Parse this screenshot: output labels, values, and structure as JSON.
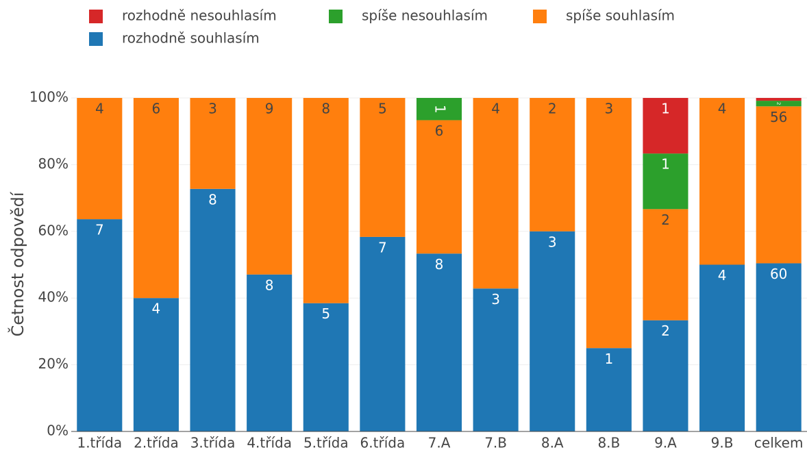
{
  "chart_data": {
    "type": "bar",
    "stack": "percent",
    "y_axis_label": "Četnost odpovědí",
    "categories": [
      "1.třída",
      "2.třída",
      "3.třída",
      "4.třída",
      "5.třída",
      "6.třída",
      "7.A",
      "7.B",
      "8.A",
      "8.B",
      "9.A",
      "9.B",
      "celkem"
    ],
    "series": [
      {
        "name": "rozhodně nesouhlasím",
        "color": "#d62728",
        "values": [
          null,
          null,
          null,
          null,
          null,
          null,
          null,
          null,
          null,
          null,
          1,
          null,
          1
        ]
      },
      {
        "name": "spíše nesouhlasím",
        "color": "#2ca02c",
        "values": [
          null,
          null,
          null,
          null,
          null,
          null,
          1,
          null,
          null,
          null,
          1,
          null,
          2
        ]
      },
      {
        "name": "spíše souhlasím",
        "color": "#ff7f0e",
        "values": [
          4,
          6,
          3,
          9,
          8,
          5,
          6,
          4,
          2,
          3,
          2,
          4,
          56
        ]
      },
      {
        "name": "rozhodně souhlasím",
        "color": "#1f77b4",
        "values": [
          7,
          4,
          8,
          8,
          5,
          7,
          8,
          3,
          3,
          1,
          2,
          4,
          60
        ]
      }
    ],
    "ylim": [
      0,
      100
    ],
    "yticks": [
      {
        "value": 0,
        "label": "0%"
      },
      {
        "value": 20,
        "label": "20%"
      },
      {
        "value": 40,
        "label": "40%"
      },
      {
        "value": 60,
        "label": "60%"
      },
      {
        "value": 80,
        "label": "80%"
      },
      {
        "value": 100,
        "label": "100%"
      }
    ],
    "grid": true
  }
}
